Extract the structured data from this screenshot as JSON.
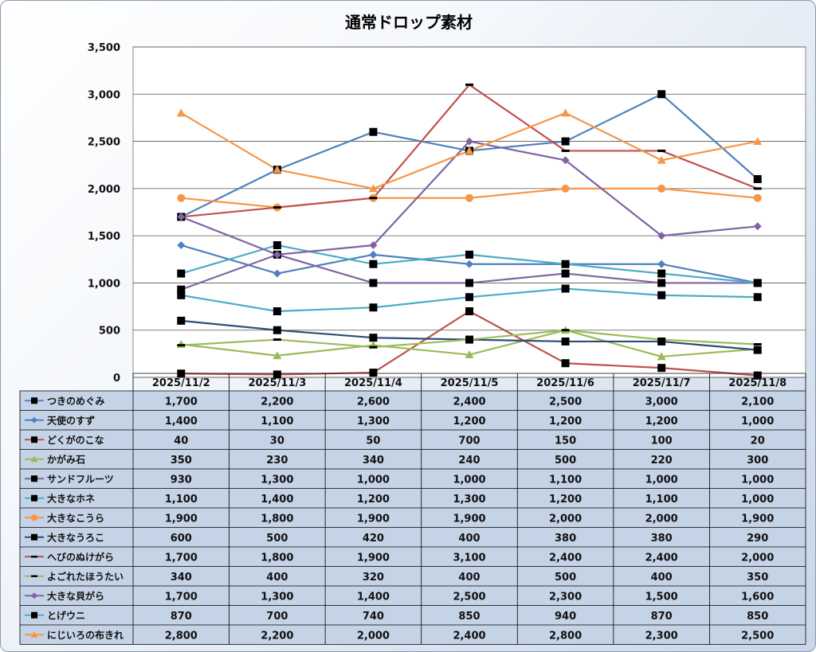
{
  "chart_data": {
    "type": "line",
    "title": "通常ドロップ素材",
    "xlabel": "",
    "ylabel": "",
    "ylim": [
      0,
      3500
    ],
    "yticks": [
      "0",
      "500",
      "1,000",
      "1,500",
      "2,000",
      "2,500",
      "3,000",
      "3,500"
    ],
    "grid": true,
    "legend": "data-table-left",
    "categories": [
      "2025/11/2",
      "2025/11/3",
      "2025/11/4",
      "2025/11/5",
      "2025/11/6",
      "2025/11/7",
      "2025/11/8"
    ],
    "series": [
      {
        "name": "つきのめぐみ",
        "color": "#4f81bd",
        "marker": "square",
        "values": [
          1700,
          2200,
          2600,
          2400,
          2500,
          3000,
          2100
        ],
        "labels": [
          "1,700",
          "2,200",
          "2,600",
          "2,400",
          "2,500",
          "3,000",
          "2,100"
        ]
      },
      {
        "name": "天使のすず",
        "color": "#4f81bd",
        "marker": "diamond",
        "values": [
          1400,
          1100,
          1300,
          1200,
          1200,
          1200,
          1000
        ],
        "labels": [
          "1,400",
          "1,100",
          "1,300",
          "1,200",
          "1,200",
          "1,200",
          "1,000"
        ]
      },
      {
        "name": "どくがのこな",
        "color": "#c0504d",
        "marker": "square",
        "values": [
          40,
          30,
          50,
          700,
          150,
          100,
          20
        ],
        "labels": [
          "40",
          "30",
          "50",
          "700",
          "150",
          "100",
          "20"
        ]
      },
      {
        "name": "かがみ石",
        "color": "#9bbb59",
        "marker": "triangle",
        "values": [
          350,
          230,
          340,
          240,
          500,
          220,
          300
        ],
        "labels": [
          "350",
          "230",
          "340",
          "240",
          "500",
          "220",
          "300"
        ]
      },
      {
        "name": "サンドフルーツ",
        "color": "#8064a2",
        "marker": "square",
        "values": [
          930,
          1300,
          1000,
          1000,
          1100,
          1000,
          1000
        ],
        "labels": [
          "930",
          "1,300",
          "1,000",
          "1,000",
          "1,100",
          "1,000",
          "1,000"
        ]
      },
      {
        "name": "大きなホネ",
        "color": "#4bacc6",
        "marker": "square",
        "values": [
          1100,
          1400,
          1200,
          1300,
          1200,
          1100,
          1000
        ],
        "labels": [
          "1,100",
          "1,400",
          "1,200",
          "1,300",
          "1,200",
          "1,100",
          "1,000"
        ]
      },
      {
        "name": "大きなこうら",
        "color": "#f79646",
        "marker": "circle",
        "values": [
          1900,
          1800,
          1900,
          1900,
          2000,
          2000,
          1900
        ],
        "labels": [
          "1,900",
          "1,800",
          "1,900",
          "1,900",
          "2,000",
          "2,000",
          "1,900"
        ]
      },
      {
        "name": "大きなうろこ",
        "color": "#2c4d75",
        "marker": "square",
        "values": [
          600,
          500,
          420,
          400,
          380,
          380,
          290
        ],
        "labels": [
          "600",
          "500",
          "420",
          "400",
          "380",
          "380",
          "290"
        ]
      },
      {
        "name": "へびのぬけがら",
        "color": "#c0504d",
        "marker": "dash",
        "values": [
          1700,
          1800,
          1900,
          3100,
          2400,
          2400,
          2000
        ],
        "labels": [
          "1,700",
          "1,800",
          "1,900",
          "3,100",
          "2,400",
          "2,400",
          "2,000"
        ]
      },
      {
        "name": "よごれたほうたい",
        "color": "#9bbb59",
        "marker": "dash",
        "values": [
          340,
          400,
          320,
          400,
          500,
          400,
          350
        ],
        "labels": [
          "340",
          "400",
          "320",
          "400",
          "500",
          "400",
          "350"
        ]
      },
      {
        "name": "大きな貝がら",
        "color": "#8064a2",
        "marker": "diamond",
        "values": [
          1700,
          1300,
          1400,
          2500,
          2300,
          1500,
          1600
        ],
        "labels": [
          "1,700",
          "1,300",
          "1,400",
          "2,500",
          "2,300",
          "1,500",
          "1,600"
        ]
      },
      {
        "name": "とげウニ",
        "color": "#4bacc6",
        "marker": "square",
        "values": [
          870,
          700,
          740,
          850,
          940,
          870,
          850
        ],
        "labels": [
          "870",
          "700",
          "740",
          "850",
          "940",
          "870",
          "850"
        ]
      },
      {
        "name": "にじいろの布きれ",
        "color": "#f79646",
        "marker": "triangle",
        "values": [
          2800,
          2200,
          2000,
          2400,
          2800,
          2300,
          2500
        ],
        "labels": [
          "2,800",
          "2,200",
          "2,000",
          "2,400",
          "2,800",
          "2,300",
          "2,500"
        ]
      }
    ]
  }
}
